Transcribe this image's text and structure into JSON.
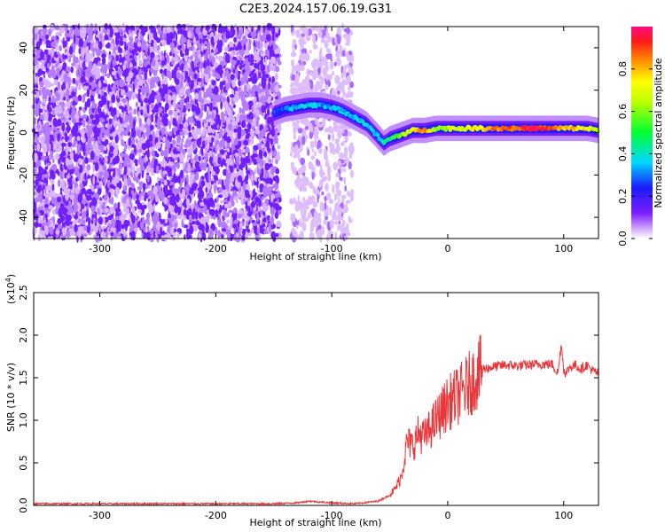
{
  "title": "C2E3.2024.157.06.19.G31",
  "chart_data": [
    {
      "type": "heatmap",
      "xlabel": "Height of straight line (km)",
      "ylabel": "Frequency (Hz)",
      "xlim": [
        -357,
        130
      ],
      "ylim": [
        -50,
        50
      ],
      "xticks": [
        -300,
        -200,
        -100,
        0,
        100
      ],
      "yticks": [
        -40,
        -20,
        0,
        20,
        40
      ],
      "colorbar": {
        "label": "Normalized spectral amplitude",
        "range": [
          0,
          1
        ],
        "ticks": [
          0.0,
          0.2,
          0.4,
          0.6,
          0.8
        ]
      },
      "noise_regions": [
        {
          "x": [
            -357,
            -145
          ],
          "y": [
            -50,
            50
          ],
          "amplitude": 0.12
        },
        {
          "x": [
            -135,
            -82
          ],
          "y": [
            -50,
            50
          ],
          "amplitude": 0.05
        }
      ],
      "ridge": {
        "x": [
          -150,
          -140,
          -130,
          -120,
          -110,
          -100,
          -90,
          -80,
          -70,
          -60,
          -55,
          -50,
          -40,
          -30,
          -20,
          -10,
          0,
          20,
          40,
          60,
          80,
          100,
          120,
          130
        ],
        "frequency": [
          9,
          11,
          12,
          13,
          13,
          12,
          10,
          7,
          4,
          -2,
          -5,
          -3,
          -1,
          1,
          1,
          2,
          2,
          2,
          2,
          2,
          2,
          2,
          2,
          1
        ],
        "amplitude": [
          0.25,
          0.3,
          0.35,
          0.35,
          0.35,
          0.35,
          0.35,
          0.35,
          0.4,
          0.35,
          0.4,
          0.45,
          0.6,
          0.75,
          0.85,
          0.6,
          0.65,
          0.7,
          0.85,
          0.9,
          0.95,
          0.8,
          0.75,
          0.6
        ]
      }
    },
    {
      "type": "line",
      "xlabel": "Height of straight line (km)",
      "ylabel": "SNR (10 * v/v)",
      "ylabel_multiplier": "(x10",
      "ylabel_multiplier_exp": "4",
      "ylabel_multiplier_close": ")",
      "xlim": [
        -357,
        130
      ],
      "ylim": [
        0,
        2.5
      ],
      "xticks": [
        -300,
        -200,
        -100,
        0,
        100
      ],
      "yticks": [
        0.0,
        0.5,
        1.0,
        1.5,
        2.0,
        2.5
      ],
      "color": "#e8363a",
      "series": [
        {
          "x": [
            -357,
            -300,
            -200,
            -150,
            -130,
            -120,
            -110,
            -100,
            -80,
            -60,
            -50,
            -45,
            -40,
            -38,
            -35,
            -30,
            -25,
            -20,
            -15,
            -10,
            -5,
            0,
            5,
            10,
            20,
            30,
            40,
            50,
            60,
            70,
            80,
            90,
            95,
            98,
            100,
            102,
            105,
            110,
            115,
            120,
            125,
            130
          ],
          "y": [
            0.02,
            0.02,
            0.02,
            0.02,
            0.03,
            0.05,
            0.04,
            0.03,
            0.02,
            0.05,
            0.12,
            0.2,
            0.35,
            0.5,
            0.75,
            0.7,
            0.85,
            0.8,
            0.9,
            1.0,
            1.1,
            1.2,
            1.25,
            1.3,
            1.45,
            1.6,
            1.63,
            1.65,
            1.64,
            1.65,
            1.66,
            1.66,
            1.55,
            1.9,
            1.6,
            1.55,
            1.62,
            1.65,
            1.6,
            1.65,
            1.58,
            1.55
          ]
        }
      ]
    }
  ]
}
